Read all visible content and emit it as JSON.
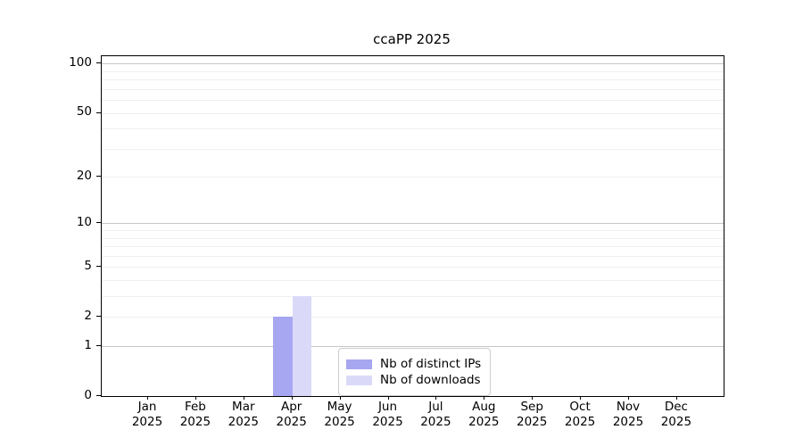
{
  "title": "ccaPP 2025",
  "legend": {
    "entries": [
      {
        "label": "Nb of distinct IPs",
        "color": "#a6a6f1"
      },
      {
        "label": "Nb of downloads",
        "color": "#dadaf8"
      }
    ]
  },
  "chart_data": {
    "type": "bar",
    "title": "ccaPP 2025",
    "categories": [
      "Jan",
      "Feb",
      "Mar",
      "Apr",
      "May",
      "Jun",
      "Jul",
      "Aug",
      "Sep",
      "Oct",
      "Nov",
      "Dec"
    ],
    "year_label": "2025",
    "series": [
      {
        "name": "Nb of distinct IPs",
        "color": "#a6a6f1",
        "values": [
          0,
          0,
          0,
          2,
          0,
          0,
          0,
          0,
          0,
          0,
          0,
          0
        ]
      },
      {
        "name": "Nb of downloads",
        "color": "#dadaf8",
        "values": [
          0,
          0,
          0,
          3,
          0,
          0,
          0,
          0,
          0,
          0,
          0,
          0
        ]
      }
    ],
    "xlabel": "",
    "ylabel": "",
    "y_axis": {
      "scale": "log1p",
      "tick_values": [
        0,
        1,
        2,
        5,
        10,
        20,
        50,
        100
      ],
      "tick_labels": [
        "0",
        "1",
        "2",
        "5",
        "10",
        "20",
        "50",
        "100"
      ],
      "ylim": [
        0,
        111
      ],
      "major_gridline_values": [
        1,
        10,
        100
      ],
      "minor_gridline_values": [
        2,
        3,
        4,
        5,
        6,
        7,
        8,
        9,
        20,
        30,
        40,
        50,
        60,
        70,
        80,
        90
      ]
    },
    "grid": true,
    "legend_position": "lower center",
    "colors": {
      "spine": "#000000",
      "major_grid": "#c6c6c6",
      "minor_grid": "#efefef",
      "background": "#ffffff"
    }
  }
}
